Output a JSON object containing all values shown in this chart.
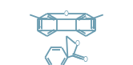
{
  "bg_color": "#ffffff",
  "line_color": "#6a9cb0",
  "line_width": 1.3,
  "figsize": [
    1.66,
    0.81
  ],
  "dpi": 100,
  "xlim": [
    0,
    166
  ],
  "ylim": [
    0,
    81
  ]
}
